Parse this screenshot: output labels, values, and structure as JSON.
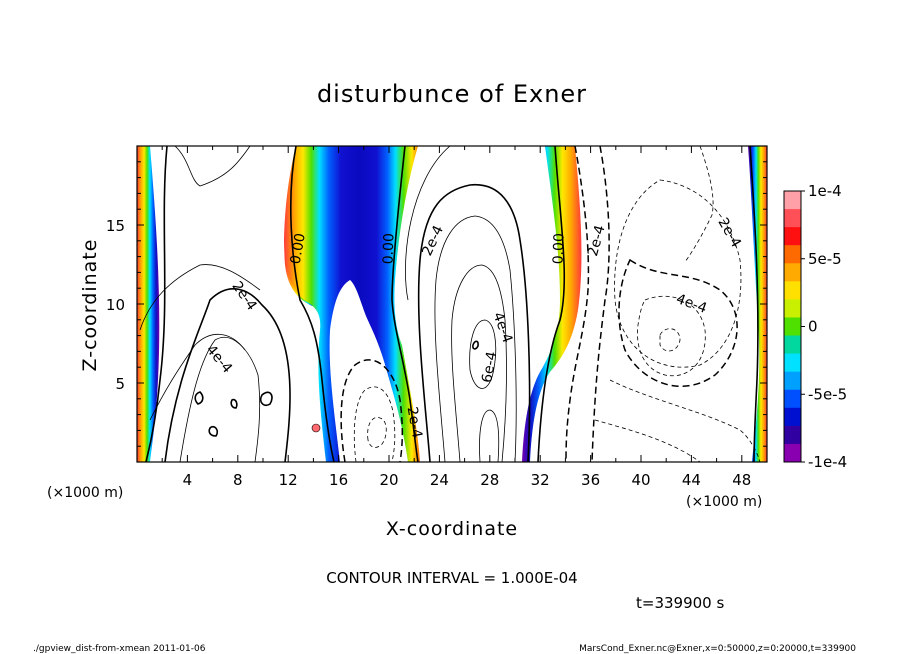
{
  "chart_data": {
    "type": "heatmap",
    "title": "disturbunce of Exner",
    "xlabel": "X-coordinate",
    "ylabel": "Z-coordinate",
    "x_unit": "(×1000 m)",
    "y_unit": "(×1000 m)",
    "xlim": [
      0,
      50
    ],
    "ylim": [
      0,
      20
    ],
    "x_ticks": [
      "4",
      "8",
      "12",
      "16",
      "20",
      "24",
      "28",
      "32",
      "36",
      "40",
      "44",
      "48"
    ],
    "y_ticks": [
      "5",
      "10",
      "15"
    ],
    "contour_interval_text": "CONTOUR INTERVAL = 1.000E-04",
    "time_text": "t=339900 s",
    "colorbar": {
      "range": [
        -0.0001,
        0.0001
      ],
      "labels": [
        "1e-4",
        "5e-5",
        "0",
        "-5e-5",
        "-1e-4"
      ],
      "colors": [
        "#ffa0a8",
        "#ff5058",
        "#ff1010",
        "#ff6a00",
        "#ffaa00",
        "#ffe000",
        "#c8f000",
        "#50e000",
        "#00d8a0",
        "#00e0ff",
        "#00a0ff",
        "#0050ff",
        "#0010d0",
        "#3000a0",
        "#8800b0"
      ]
    },
    "contour_labels": [
      {
        "text": "0.00",
        "x": 12.8,
        "z": 13.5,
        "rot": -80
      },
      {
        "text": "0.00",
        "x": 20.0,
        "z": 13.5,
        "rot": -88
      },
      {
        "text": "0.00",
        "x": 33.5,
        "z": 13.5,
        "rot": -88
      },
      {
        "text": "2e-4",
        "x": 8.5,
        "z": 10.5,
        "rot": 55
      },
      {
        "text": "4e-4",
        "x": 6.5,
        "z": 6.5,
        "rot": 50
      },
      {
        "text": "2e-4",
        "x": 23.5,
        "z": 14.0,
        "rot": -65
      },
      {
        "text": "4e-4",
        "x": 29.0,
        "z": 8.5,
        "rot": 70
      },
      {
        "text": "6e-4",
        "x": 28.0,
        "z": 6.0,
        "rot": -80
      },
      {
        "text": "2e-4",
        "x": 22.0,
        "z": 2.5,
        "rot": 80
      },
      {
        "text": "2e-4",
        "x": 36.5,
        "z": 14.0,
        "rot": -75
      },
      {
        "text": "2e-4",
        "x": 47.0,
        "z": 14.5,
        "rot": 60
      },
      {
        "text": "4e-4",
        "x": 44.0,
        "z": 10.0,
        "rot": 20
      }
    ]
  },
  "footer": {
    "left": "./gpview_dist-from-xmean   2011-01-06",
    "right": "MarsCond_Exner.nc@Exner,x=0:50000,z=0:20000,t=339900"
  }
}
